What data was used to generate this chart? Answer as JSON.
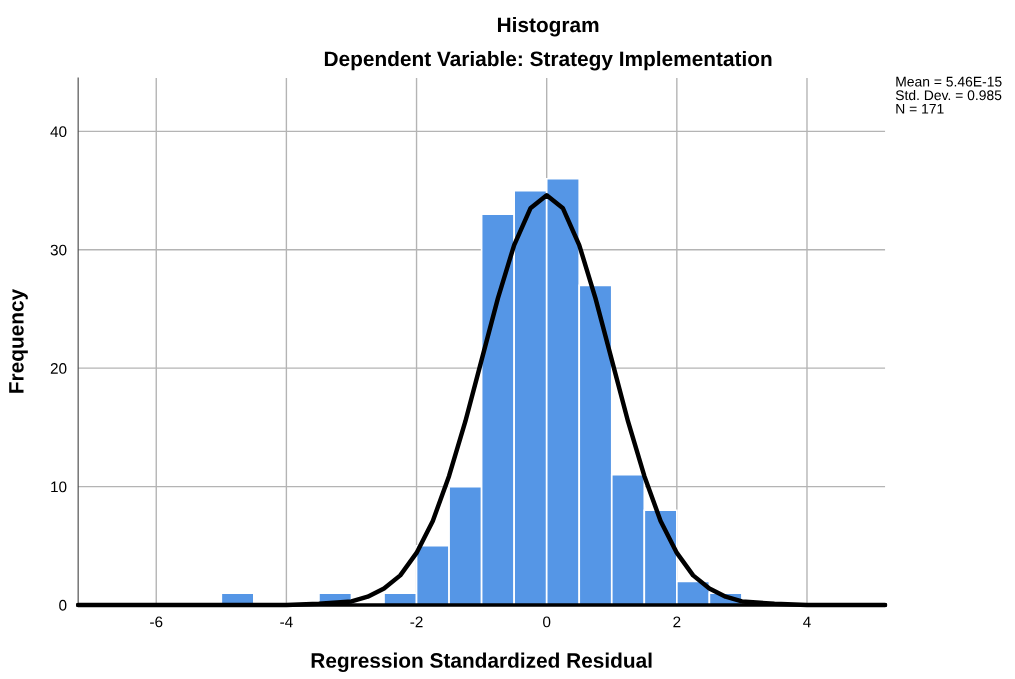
{
  "chart_data": {
    "type": "histogram",
    "title": "Histogram",
    "subtitle": "Dependent Variable: Strategy Implementation",
    "xlabel": "Regression Standardized Residual",
    "ylabel": "Frequency",
    "bins": [
      -5,
      -4.5,
      -4,
      -3.5,
      -3,
      -2.5,
      -2,
      -1.5,
      -1,
      -0.5,
      0,
      0.5,
      1,
      1.5,
      2,
      2.5,
      3
    ],
    "values": [
      1,
      0,
      0,
      1,
      0,
      1,
      5,
      10,
      33,
      35,
      36,
      27,
      11,
      8,
      2,
      1
    ],
    "color": "#5596e6",
    "series": [
      {
        "type": "line",
        "color": "#000000",
        "x": [
          -7.2,
          -4,
          -3.5,
          -3,
          -2.75,
          -2.5,
          -2.25,
          -2,
          -1.75,
          -1.5,
          -1.25,
          -1,
          -0.75,
          -0.5,
          -0.25,
          0,
          0.25,
          0.5,
          0.75,
          1,
          1.25,
          1.5,
          1.75,
          2,
          2.25,
          2.5,
          2.75,
          3,
          3.5,
          4,
          5.2
        ],
        "values": [
          0,
          0,
          0.1,
          0.3,
          0.7,
          1.4,
          2.5,
          4.4,
          7.1,
          10.9,
          15.5,
          20.7,
          25.9,
          30.4,
          33.5,
          34.6,
          33.5,
          30.4,
          25.9,
          20.7,
          15.5,
          10.9,
          7.1,
          4.4,
          2.5,
          1.4,
          0.7,
          0.3,
          0.1,
          0,
          0
        ]
      }
    ],
    "xlim": [
      -7.2,
      5.2
    ],
    "xticks": [
      {
        "value": -6,
        "label": "-6"
      },
      {
        "value": -4,
        "label": "-4"
      },
      {
        "value": -2,
        "label": "-2"
      },
      0,
      2,
      4
    ],
    "ylim": [
      0,
      44.5
    ],
    "yticks": [
      0,
      10,
      20,
      30,
      40
    ],
    "grid": true,
    "annotations": [
      "Mean = 5.46E-15",
      "Std. Dev. = 0.985",
      "N = 171"
    ]
  }
}
